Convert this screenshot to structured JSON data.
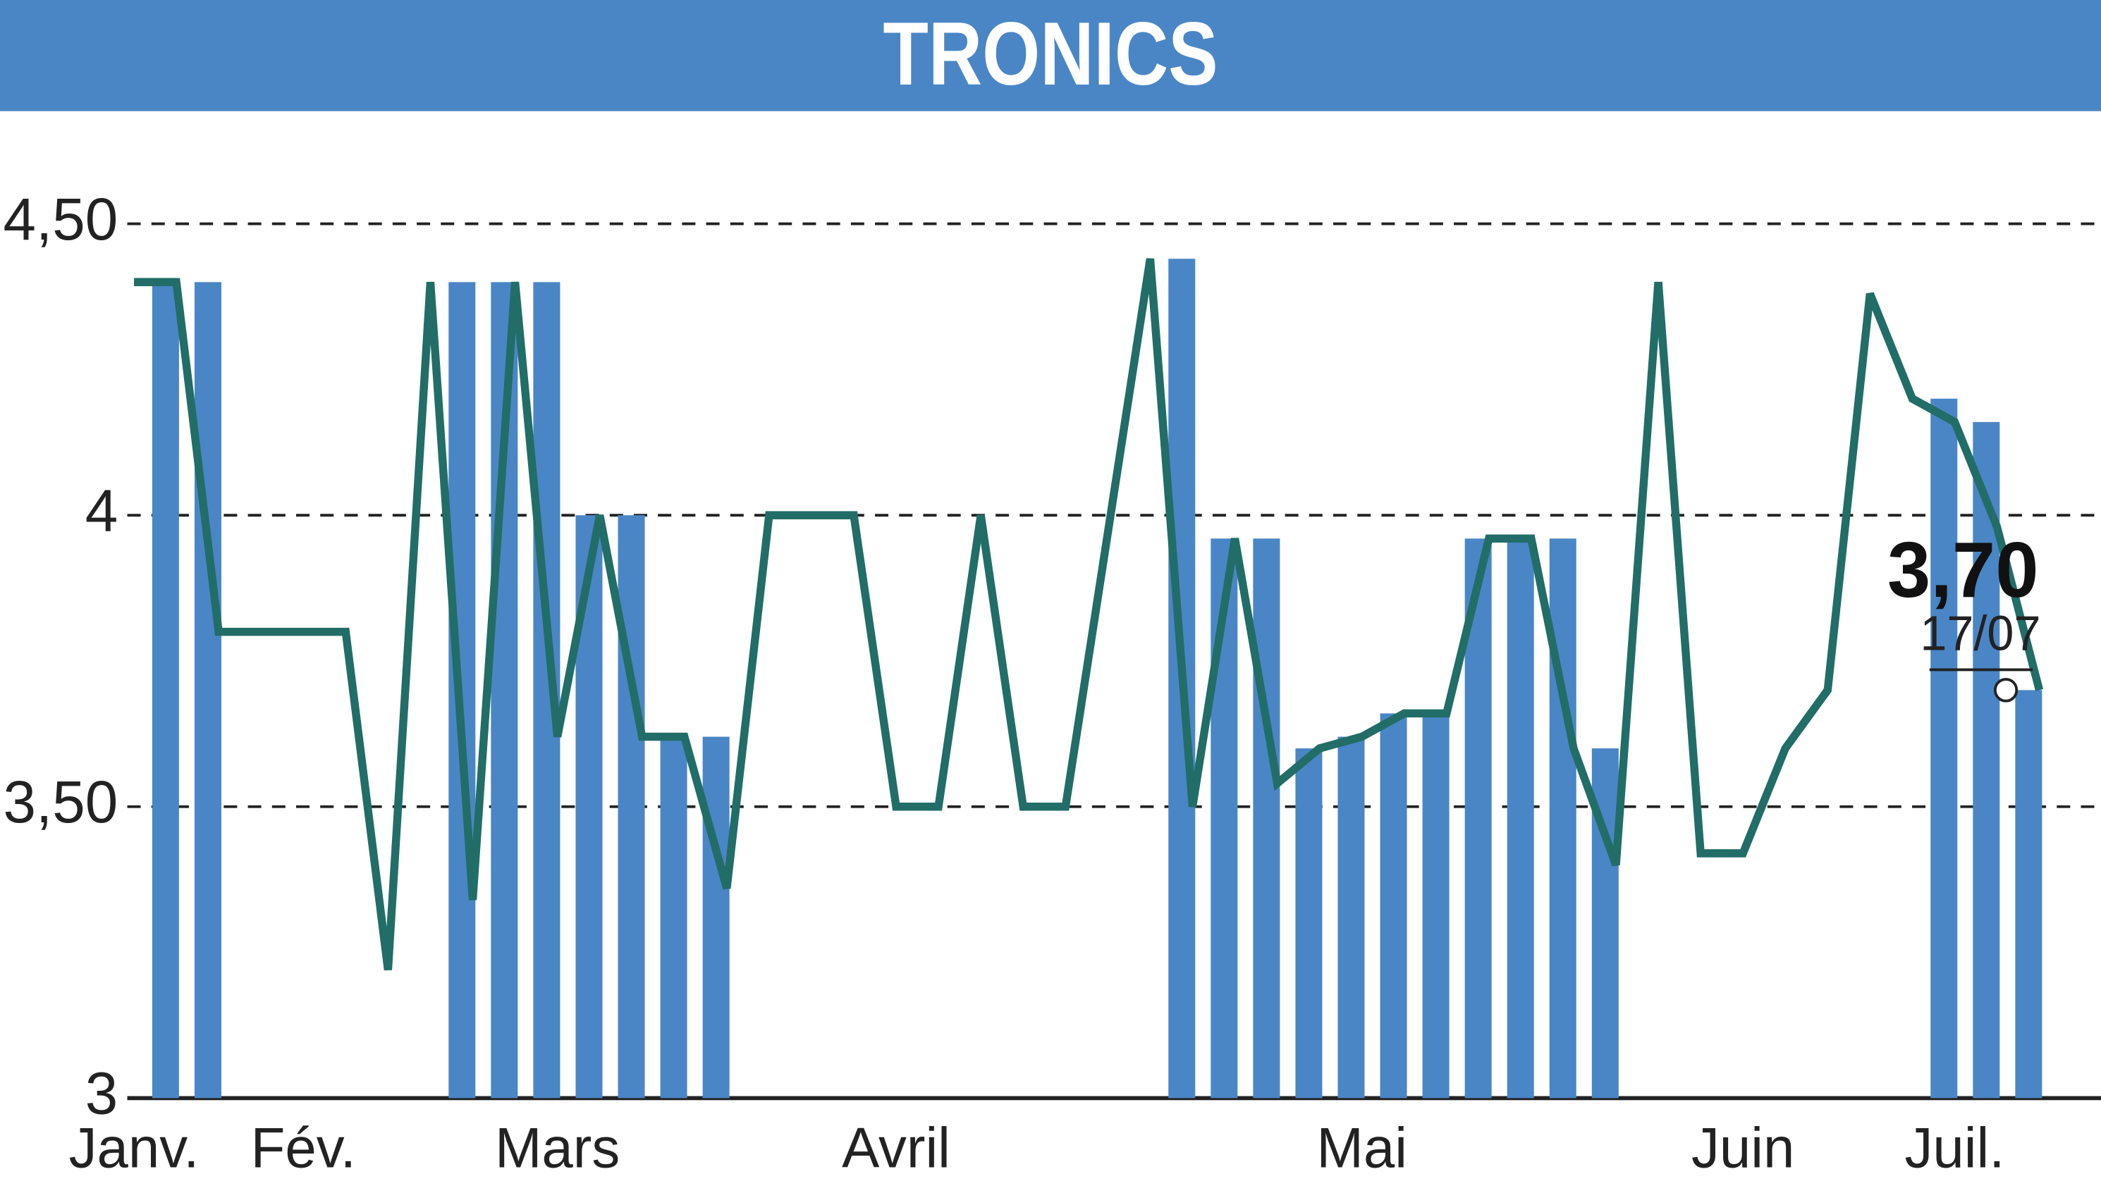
{
  "chart_data": {
    "type": "line",
    "title": "TRONICS",
    "categories": [
      "Janv.",
      null,
      null,
      null,
      "Fév.",
      null,
      null,
      null,
      null,
      null,
      "Mars",
      null,
      null,
      null,
      null,
      null,
      null,
      null,
      "Avril",
      null,
      null,
      null,
      null,
      null,
      null,
      null,
      null,
      null,
      null,
      "Mai",
      null,
      null,
      null,
      null,
      null,
      null,
      null,
      null,
      "Juin",
      null,
      null,
      null,
      null,
      "Juil.",
      null,
      null
    ],
    "values": [
      4.4,
      4.4,
      3.8,
      3.8,
      3.8,
      3.8,
      3.22,
      4.4,
      3.34,
      4.4,
      3.62,
      4.0,
      3.62,
      3.62,
      3.36,
      4.0,
      4.0,
      4.0,
      3.5,
      3.5,
      4.0,
      3.5,
      3.5,
      3.97,
      4.44,
      3.5,
      3.96,
      3.54,
      3.6,
      3.62,
      3.66,
      3.66,
      3.96,
      3.96,
      3.6,
      3.4,
      4.4,
      3.42,
      3.42,
      3.6,
      3.7,
      4.38,
      4.2,
      4.16,
      3.98,
      3.7
    ],
    "bars": [
      null,
      4.4,
      4.4,
      null,
      null,
      null,
      null,
      null,
      4.4,
      4.4,
      4.4,
      4.0,
      4.0,
      3.62,
      3.62,
      null,
      null,
      null,
      null,
      null,
      null,
      null,
      null,
      null,
      null,
      4.44,
      3.96,
      3.96,
      3.6,
      3.62,
      3.66,
      3.66,
      3.96,
      3.96,
      3.96,
      3.6,
      null,
      null,
      null,
      null,
      null,
      null,
      null,
      4.2,
      4.16,
      3.7
    ],
    "color": "#226d67",
    "bar_color": "#4a86c5",
    "ylim": [
      3,
      4.67
    ],
    "yticks": [
      {
        "value": 3,
        "label": "3"
      },
      {
        "value": 3.5,
        "label": "3,50"
      },
      {
        "value": 4,
        "label": "4"
      },
      {
        "value": 4.5,
        "label": "4,50"
      }
    ],
    "grid": true,
    "last_value_label": "3,70",
    "last_date_label": "17/07"
  }
}
